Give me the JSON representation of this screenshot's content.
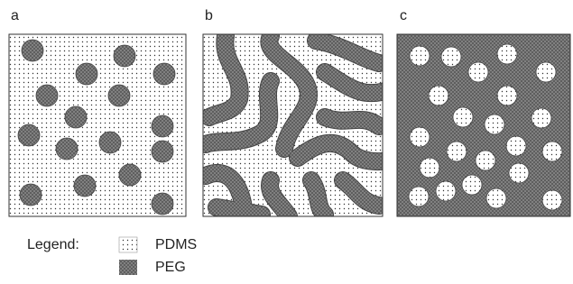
{
  "panels": [
    {
      "label": "a"
    },
    {
      "label": "b"
    },
    {
      "label": "c"
    }
  ],
  "legend": {
    "title": "Legend:",
    "items": [
      {
        "label": "PDMS"
      },
      {
        "label": "PEG"
      }
    ]
  }
}
